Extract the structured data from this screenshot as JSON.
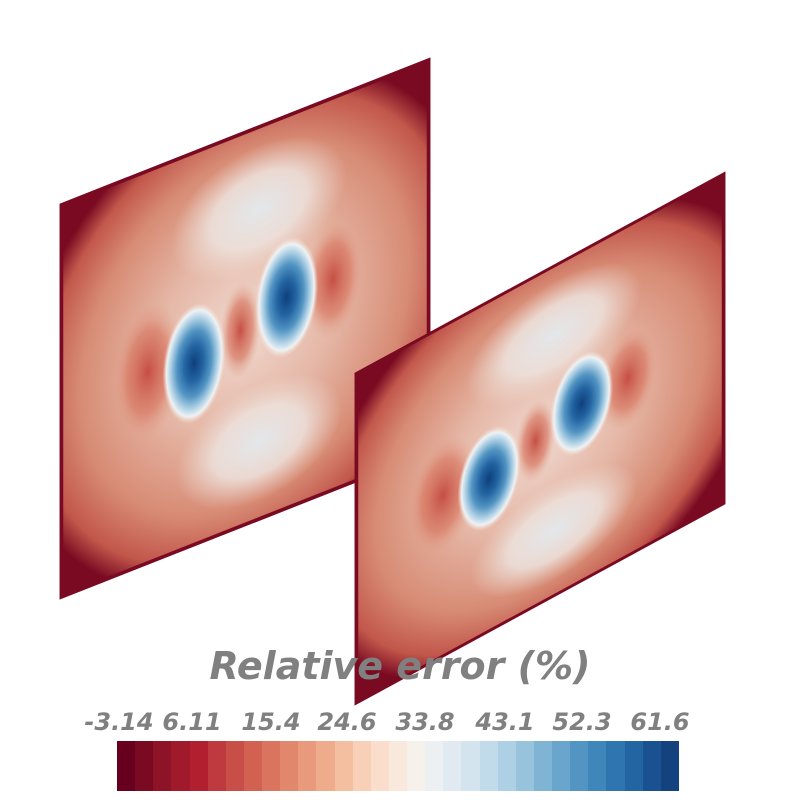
{
  "colorbar": {
    "title": "Relative error (%)",
    "tick_labels": [
      "-3.14",
      "6.11",
      "15.4",
      "24.6",
      "33.8",
      "43.1",
      "52.3",
      "61.6"
    ],
    "colors": [
      "#67001f",
      "#7a0a22",
      "#8e1326",
      "#a11a2b",
      "#b2202f",
      "#bf3a3e",
      "#c84e48",
      "#d26152",
      "#da745e",
      "#e1876c",
      "#e99a7c",
      "#efac8d",
      "#f4bea1",
      "#f8cfb7",
      "#fadecb",
      "#f9e9dd",
      "#f7f1ec",
      "#edf0f3",
      "#e1eaf1",
      "#d3e4ee",
      "#c2dbea",
      "#aed0e4",
      "#97c3dd",
      "#80b4d5",
      "#69a5cc",
      "#5295c3",
      "#3f86bb",
      "#2f76b1",
      "#2364a2",
      "#1a5291",
      "#13427f"
    ]
  },
  "panels": [
    {
      "name": "left-panel"
    },
    {
      "name": "right-panel"
    }
  ]
}
